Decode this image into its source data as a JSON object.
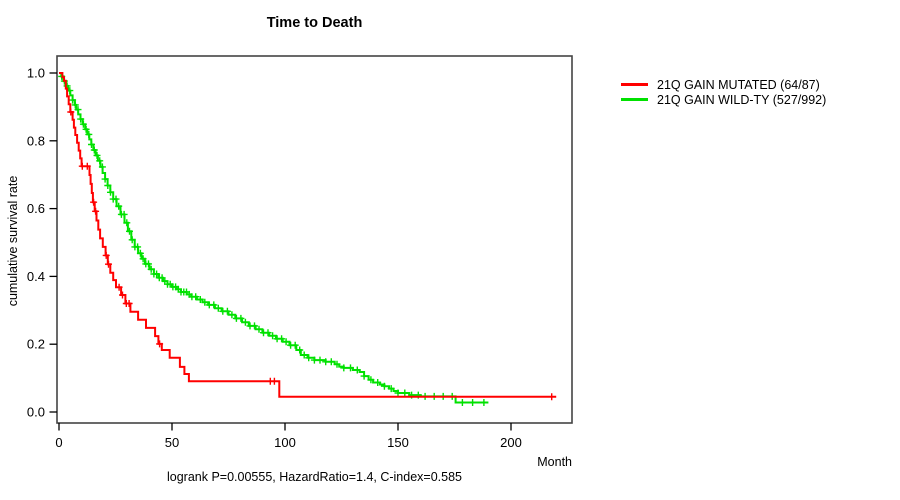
{
  "title": "Time to Death",
  "y_axis_label": "cumulative survival rate",
  "x_axis_label": "Month",
  "footer": "logrank P=0.00555, HazardRatio=1.4, C-index=0.585",
  "legend": [
    {
      "label": "21Q GAIN MUTATED (64/87)",
      "color": "#ff0000"
    },
    {
      "label": "21Q GAIN WILD-TY (527/992)",
      "color": "#00e100"
    }
  ],
  "chart_data": {
    "type": "line",
    "subtype": "kaplan-meier-step-survival",
    "title": "Time to Death",
    "xlabel": "Month",
    "ylabel": "cumulative survival rate",
    "xlim": [
      0,
      227
    ],
    "ylim": [
      0,
      1.0
    ],
    "x_ticks": [
      0,
      50,
      100,
      150,
      200
    ],
    "y_ticks": [
      "0.0",
      "0.2",
      "0.4",
      "0.6",
      "0.8",
      "1.0"
    ],
    "grid": false,
    "legend_position": "right-outside",
    "annotation": "logrank P=0.00555, HazardRatio=1.4, C-index=0.585",
    "series": [
      {
        "name": "21Q GAIN MUTATED (64/87)",
        "color": "#ff0000",
        "steps": [
          [
            0,
            1.0
          ],
          [
            1.5,
            0.988
          ],
          [
            2.2,
            0.977
          ],
          [
            3,
            0.954
          ],
          [
            3.6,
            0.931
          ],
          [
            4.3,
            0.908
          ],
          [
            5,
            0.885
          ],
          [
            6,
            0.862
          ],
          [
            6.6,
            0.839
          ],
          [
            7.2,
            0.817
          ],
          [
            8,
            0.794
          ],
          [
            8.7,
            0.771
          ],
          [
            9.4,
            0.748
          ],
          [
            10,
            0.725
          ],
          [
            13.5,
            0.699
          ],
          [
            14,
            0.673
          ],
          [
            14.5,
            0.646
          ],
          [
            15,
            0.619
          ],
          [
            15.8,
            0.592
          ],
          [
            16.6,
            0.565
          ],
          [
            17.4,
            0.538
          ],
          [
            18.2,
            0.512
          ],
          [
            19.4,
            0.487
          ],
          [
            20.6,
            0.462
          ],
          [
            21.6,
            0.436
          ],
          [
            22.7,
            0.411
          ],
          [
            24,
            0.389
          ],
          [
            25.2,
            0.368
          ],
          [
            27.5,
            0.345
          ],
          [
            29.4,
            0.32
          ],
          [
            31.6,
            0.296
          ],
          [
            35,
            0.272
          ],
          [
            38.5,
            0.248
          ],
          [
            42.5,
            0.224
          ],
          [
            44,
            0.201
          ],
          [
            45.5,
            0.183
          ],
          [
            49,
            0.16
          ],
          [
            53.5,
            0.133
          ],
          [
            55.5,
            0.112
          ],
          [
            57.5,
            0.091
          ],
          [
            97.5,
            0.045
          ],
          [
            220,
            0.045
          ]
        ],
        "censor_marks": [
          5.2,
          10.3,
          12.5,
          15.3,
          16.2,
          20.9,
          21.9,
          26.6,
          28.1,
          29.8,
          31.0,
          44.5,
          93.5,
          95.3,
          218
        ]
      },
      {
        "name": "21Q GAIN WILD-TY (527/992)",
        "color": "#00e100",
        "steps": [
          [
            0,
            1.0
          ],
          [
            1,
            0.99
          ],
          [
            2,
            0.976
          ],
          [
            3,
            0.962
          ],
          [
            4,
            0.948
          ],
          [
            5,
            0.934
          ],
          [
            6,
            0.92
          ],
          [
            7,
            0.906
          ],
          [
            7.6,
            0.892
          ],
          [
            8.5,
            0.878
          ],
          [
            9.5,
            0.864
          ],
          [
            10.5,
            0.849
          ],
          [
            11.6,
            0.834
          ],
          [
            12.5,
            0.819
          ],
          [
            13.4,
            0.804
          ],
          [
            14.3,
            0.789
          ],
          [
            15.2,
            0.773
          ],
          [
            16.2,
            0.757
          ],
          [
            17.2,
            0.741
          ],
          [
            18.3,
            0.723
          ],
          [
            19.3,
            0.705
          ],
          [
            20.4,
            0.687
          ],
          [
            21.5,
            0.668
          ],
          [
            22.7,
            0.648
          ],
          [
            24,
            0.628
          ],
          [
            25.5,
            0.607
          ],
          [
            27.2,
            0.583
          ],
          [
            29,
            0.558
          ],
          [
            30.5,
            0.533
          ],
          [
            32,
            0.508
          ],
          [
            33.5,
            0.487
          ],
          [
            35,
            0.468
          ],
          [
            36.5,
            0.452
          ],
          [
            38,
            0.437
          ],
          [
            40,
            0.421
          ],
          [
            42,
            0.407
          ],
          [
            44,
            0.396
          ],
          [
            46,
            0.386
          ],
          [
            48,
            0.377
          ],
          [
            50,
            0.369
          ],
          [
            52,
            0.362
          ],
          [
            54,
            0.354
          ],
          [
            56.5,
            0.347
          ],
          [
            58.5,
            0.34
          ],
          [
            61,
            0.332
          ],
          [
            63.5,
            0.324
          ],
          [
            66,
            0.316
          ],
          [
            69,
            0.306
          ],
          [
            72,
            0.297
          ],
          [
            75,
            0.287
          ],
          [
            78,
            0.276
          ],
          [
            81,
            0.265
          ],
          [
            84,
            0.254
          ],
          [
            87,
            0.244
          ],
          [
            90,
            0.234
          ],
          [
            93,
            0.225
          ],
          [
            96,
            0.216
          ],
          [
            99,
            0.207
          ],
          [
            102,
            0.197
          ],
          [
            105,
            0.183
          ],
          [
            107,
            0.168
          ],
          [
            110,
            0.16
          ],
          [
            113,
            0.153
          ],
          [
            118,
            0.148
          ],
          [
            122,
            0.141
          ],
          [
            124,
            0.134
          ],
          [
            126,
            0.13
          ],
          [
            130,
            0.124
          ],
          [
            133,
            0.118
          ],
          [
            135,
            0.106
          ],
          [
            137,
            0.095
          ],
          [
            139,
            0.087
          ],
          [
            142,
            0.081
          ],
          [
            144,
            0.076
          ],
          [
            146,
            0.069
          ],
          [
            148,
            0.062
          ],
          [
            150,
            0.056
          ],
          [
            155,
            0.05
          ],
          [
            160,
            0.046
          ],
          [
            175.5,
            0.028
          ],
          [
            190,
            0.028
          ]
        ],
        "censor_marks": [
          1.2,
          2.4,
          3.6,
          4.8,
          6,
          7.2,
          8.4,
          9.6,
          10.8,
          12,
          13.2,
          14.4,
          15.6,
          16.8,
          18,
          19.2,
          20.4,
          21.6,
          22.8,
          24,
          25.2,
          26.4,
          27.6,
          28.8,
          30,
          31.2,
          32.4,
          33.6,
          34.8,
          36,
          37.2,
          38.4,
          39.6,
          40.8,
          42,
          43.2,
          44.4,
          45.6,
          46.8,
          48,
          49.2,
          50.4,
          51.6,
          52.8,
          54,
          55.2,
          56.4,
          57.6,
          58.8,
          60.5,
          62.5,
          64.5,
          66.5,
          68.5,
          70.5,
          72.5,
          74.5,
          76.5,
          78.5,
          80.5,
          82.5,
          84.5,
          86.5,
          88.5,
          90.5,
          92.5,
          94.5,
          96.5,
          98.5,
          100.5,
          102.5,
          104.5,
          106.5,
          108.5,
          110.5,
          113,
          115.5,
          118,
          120.5,
          123,
          126,
          129,
          132,
          135,
          138,
          141,
          144,
          147,
          150,
          153,
          156,
          159,
          162,
          166,
          170,
          174,
          178.5,
          183,
          188
        ]
      }
    ]
  }
}
